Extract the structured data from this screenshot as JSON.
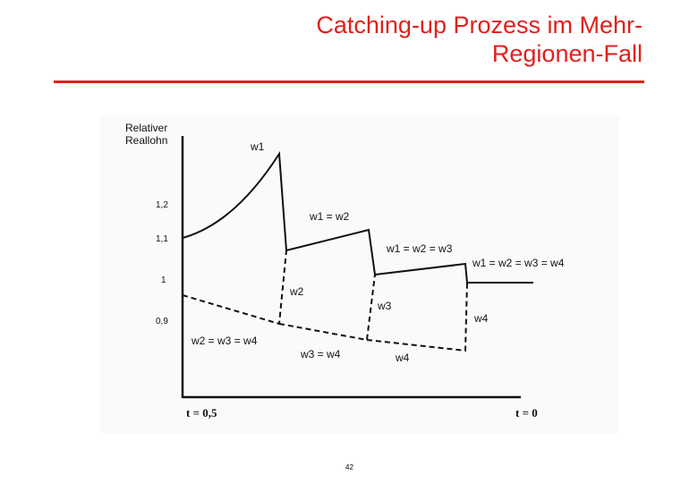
{
  "slide": {
    "title_line1": "Catching-up Prozess im Mehr-",
    "title_line2": "Regionen-Fall",
    "page_number": "42"
  },
  "diagram": {
    "y_axis_label_line1": "Relativer",
    "y_axis_label_line2": "Reallohn",
    "y_ticks": [
      "1,2",
      "1,1",
      "1",
      "0,9"
    ],
    "x_label_left": "t = 0,5",
    "x_label_right": "t = 0",
    "curve_labels": {
      "w1": "w1",
      "w1_eq_w2": "w1 = w2",
      "w1_eq_w2_eq_w3": "w1 = w2 = w3",
      "w1_eq_w2_eq_w3_eq_w4": "w1 = w2 = w3 = w4",
      "w2": "w2",
      "w3": "w3",
      "w4": "w4",
      "w2_eq_w3_eq_w4": "w2 = w3 = w4",
      "w3_eq_w4": "w3 = w4",
      "w4_lower": "w4"
    },
    "colors": {
      "title": "#e0201c",
      "ink": "#111111"
    }
  }
}
